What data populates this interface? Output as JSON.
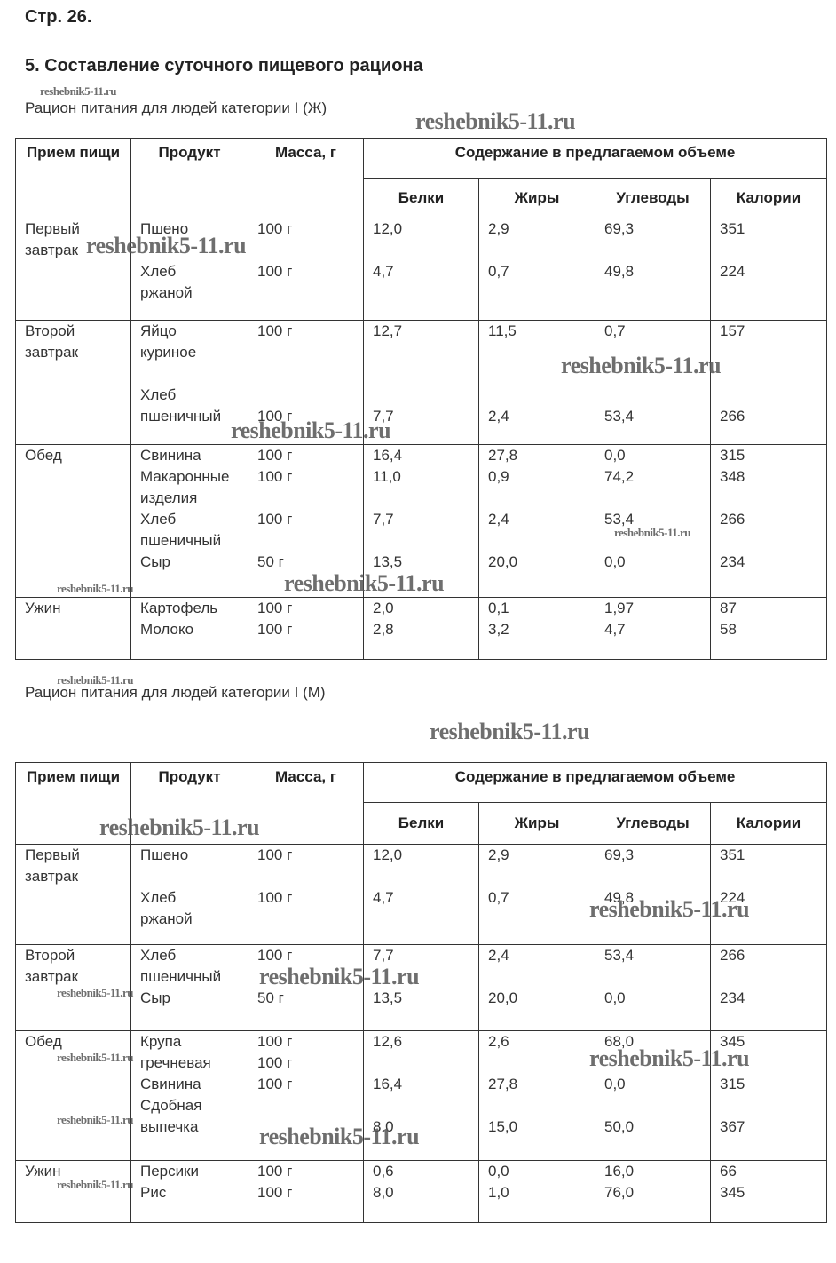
{
  "page_label": "Стр. 26.",
  "section_title": "5. Составление суточного пищевого рациона",
  "watermark": "reshebnik5-11.ru",
  "table_headers": {
    "meal": "Прием пищи",
    "product": "Продукт",
    "mass": "Масса, г",
    "content": "Содержание в предлагаемом объеме",
    "protein": "Белки",
    "fat": "Жиры",
    "carbs": "Углеводы",
    "kcal": "Калории"
  },
  "tables": [
    {
      "caption": "Рацион питания для людей категории I (Ж)",
      "rows": [
        {
          "meal": [
            "Первый",
            "завтрак"
          ],
          "product": [
            "Пшено",
            "",
            "Хлеб",
            "ржаной"
          ],
          "mass": [
            "100 г",
            "",
            "100 г"
          ],
          "protein": [
            "12,0",
            "",
            "4,7"
          ],
          "fat": [
            "2,9",
            "",
            "0,7"
          ],
          "carbs": [
            "69,3",
            "",
            "49,8"
          ],
          "kcal": [
            "351",
            "",
            "224"
          ]
        },
        {
          "meal": [
            "Второй",
            "завтрак"
          ],
          "product": [
            "Яйцо",
            "куриное",
            "",
            "Хлеб",
            "пшеничный"
          ],
          "mass": [
            "100 г",
            "",
            "",
            "",
            "100 г"
          ],
          "protein": [
            "12,7",
            "",
            "",
            "",
            "7,7"
          ],
          "fat": [
            "11,5",
            "",
            "",
            "",
            "2,4"
          ],
          "carbs": [
            "0,7",
            "",
            "",
            "",
            "53,4"
          ],
          "kcal": [
            "157",
            "",
            "",
            "",
            "266"
          ]
        },
        {
          "meal": [
            "Обед"
          ],
          "product": [
            "Свинина",
            "Макаронные",
            "изделия",
            "Хлеб",
            "пшеничный",
            "Сыр"
          ],
          "mass": [
            "100 г",
            "100 г",
            "",
            "100 г",
            "",
            "50 г"
          ],
          "protein": [
            "16,4",
            "11,0",
            "",
            "7,7",
            "",
            "13,5"
          ],
          "fat": [
            "27,8",
            "0,9",
            "",
            "2,4",
            "",
            "20,0"
          ],
          "carbs": [
            "0,0",
            "74,2",
            "",
            "53,4",
            "",
            "0,0"
          ],
          "kcal": [
            "315",
            "348",
            "",
            "266",
            "",
            "234"
          ]
        },
        {
          "meal": [
            "Ужин"
          ],
          "product": [
            "Картофель",
            "Молоко"
          ],
          "mass": [
            "100 г",
            "100 г"
          ],
          "protein": [
            "2,0",
            "2,8"
          ],
          "fat": [
            "0,1",
            "3,2"
          ],
          "carbs": [
            "1,97",
            "4,7"
          ],
          "kcal": [
            "87",
            "58"
          ]
        }
      ]
    },
    {
      "caption": "Рацион питания для людей категории I (М)",
      "rows": [
        {
          "meal": [
            "Первый",
            "завтрак"
          ],
          "product": [
            "Пшено",
            "",
            "Хлеб",
            "ржаной"
          ],
          "mass": [
            "100 г",
            "",
            "100 г"
          ],
          "protein": [
            "12,0",
            "",
            "4,7"
          ],
          "fat": [
            "2,9",
            "",
            "0,7"
          ],
          "carbs": [
            "69,3",
            "",
            "49,8"
          ],
          "kcal": [
            "351",
            "",
            "224"
          ]
        },
        {
          "meal": [
            "Второй",
            "завтрак"
          ],
          "product": [
            "Хлеб",
            "пшеничный",
            "Сыр"
          ],
          "mass": [
            "100 г",
            "",
            "50 г"
          ],
          "protein": [
            "7,7",
            "",
            "13,5"
          ],
          "fat": [
            "2,4",
            "",
            "20,0"
          ],
          "carbs": [
            "53,4",
            "",
            "0,0"
          ],
          "kcal": [
            "266",
            "",
            "234"
          ]
        },
        {
          "meal": [
            "Обед"
          ],
          "product": [
            "Крупа",
            "гречневая",
            "Свинина",
            "Сдобная",
            "выпечка"
          ],
          "mass": [
            "100 г",
            "100 г",
            "100 г"
          ],
          "protein": [
            "12,6",
            "",
            "16,4",
            "",
            "8.0"
          ],
          "fat": [
            "2,6",
            "",
            "27,8",
            "",
            "15,0"
          ],
          "carbs": [
            "68,0",
            "",
            "0,0",
            "",
            "50,0"
          ],
          "kcal": [
            "345",
            "",
            "315",
            "",
            "367"
          ]
        },
        {
          "meal": [
            "Ужин"
          ],
          "product": [
            "Персики",
            "Рис"
          ],
          "mass": [
            "100 г",
            "100 г"
          ],
          "protein": [
            "0,6",
            "8,0"
          ],
          "fat": [
            "0,0",
            "1,0"
          ],
          "carbs": [
            "16,0",
            "76,0"
          ],
          "kcal": [
            "66",
            "345"
          ]
        }
      ]
    }
  ]
}
